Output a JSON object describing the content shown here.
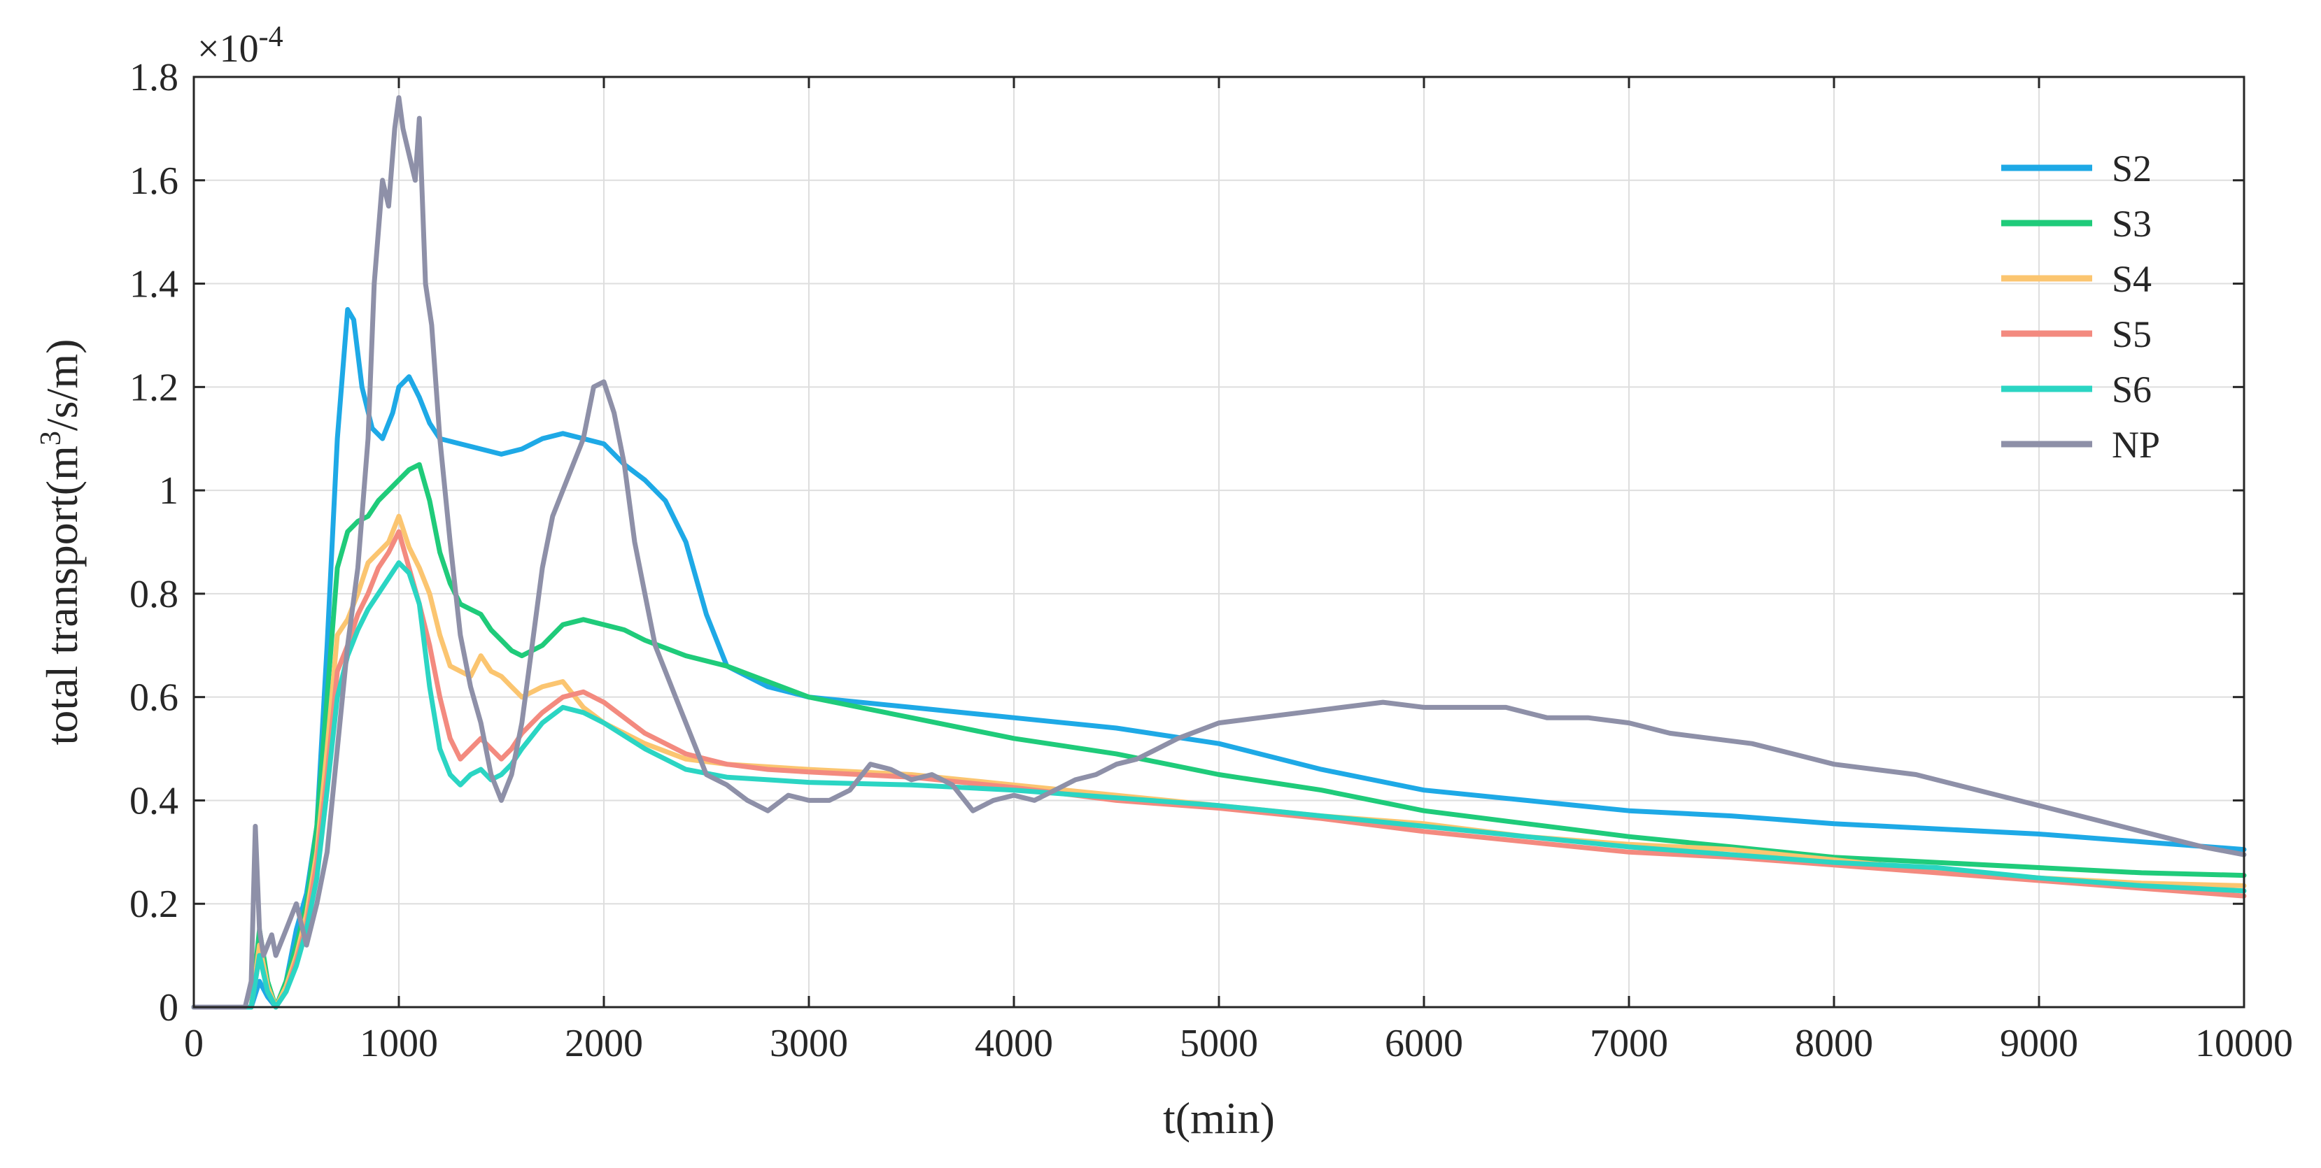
{
  "chart_data": {
    "type": "line",
    "xlabel": "t(min)",
    "ylabel_prefix": "total transport(m",
    "ylabel_sup": "3",
    "ylabel_suffix": "/s/m)",
    "exponent_base": "×10",
    "exponent_power": "-4",
    "xlim": [
      0,
      10000
    ],
    "ylim": [
      0,
      1.8
    ],
    "xticks": [
      0,
      1000,
      2000,
      3000,
      4000,
      5000,
      6000,
      7000,
      8000,
      9000,
      10000
    ],
    "xtick_labels": [
      "0",
      "1000",
      "2000",
      "3000",
      "4000",
      "5000",
      "6000",
      "7000",
      "8000",
      "9000",
      "10000"
    ],
    "yticks": [
      0,
      0.2,
      0.4,
      0.6,
      0.8,
      1,
      1.2,
      1.4,
      1.6,
      1.8
    ],
    "ytick_labels": [
      "0",
      "0.2",
      "0.4",
      "0.6",
      "0.8",
      "1",
      "1.2",
      "1.4",
      "1.6",
      "1.8"
    ],
    "grid": true,
    "legend_position": "top-right",
    "series": [
      {
        "name": "S2",
        "color": "#1EA9E6",
        "x": [
          0,
          100,
          200,
          280,
          320,
          360,
          400,
          450,
          500,
          550,
          600,
          650,
          700,
          750,
          780,
          820,
          870,
          920,
          970,
          1000,
          1050,
          1100,
          1150,
          1200,
          1300,
          1400,
          1500,
          1600,
          1700,
          1800,
          1900,
          2000,
          2100,
          2200,
          2300,
          2400,
          2500,
          2600,
          2800,
          3000,
          3500,
          4000,
          4500,
          5000,
          5500,
          6000,
          6500,
          7000,
          7500,
          8000,
          8500,
          9000,
          9500,
          10000
        ],
        "values": [
          0,
          0,
          0,
          0,
          0.05,
          0.02,
          0,
          0.05,
          0.15,
          0.22,
          0.35,
          0.7,
          1.1,
          1.35,
          1.33,
          1.2,
          1.12,
          1.1,
          1.15,
          1.2,
          1.22,
          1.18,
          1.13,
          1.1,
          1.09,
          1.08,
          1.07,
          1.08,
          1.1,
          1.11,
          1.1,
          1.09,
          1.05,
          1.02,
          0.98,
          0.9,
          0.76,
          0.66,
          0.62,
          0.6,
          0.58,
          0.56,
          0.54,
          0.51,
          0.46,
          0.42,
          0.4,
          0.38,
          0.37,
          0.355,
          0.345,
          0.335,
          0.32,
          0.305
        ]
      },
      {
        "name": "S3",
        "color": "#1FCB7A",
        "x": [
          0,
          100,
          200,
          280,
          320,
          360,
          400,
          450,
          500,
          550,
          600,
          650,
          700,
          750,
          800,
          850,
          900,
          950,
          1000,
          1050,
          1100,
          1150,
          1200,
          1250,
          1300,
          1350,
          1400,
          1450,
          1500,
          1550,
          1600,
          1700,
          1800,
          1900,
          2000,
          2100,
          2200,
          2400,
          2600,
          2800,
          3000,
          3500,
          4000,
          4500,
          5000,
          5500,
          6000,
          6500,
          7000,
          7500,
          8000,
          8500,
          9000,
          9500,
          10000
        ],
        "values": [
          0,
          0,
          0,
          0,
          0.15,
          0.05,
          0,
          0.05,
          0.12,
          0.2,
          0.35,
          0.6,
          0.85,
          0.92,
          0.94,
          0.95,
          0.98,
          1.0,
          1.02,
          1.04,
          1.05,
          0.98,
          0.88,
          0.82,
          0.78,
          0.77,
          0.76,
          0.73,
          0.71,
          0.69,
          0.68,
          0.7,
          0.74,
          0.75,
          0.74,
          0.73,
          0.71,
          0.68,
          0.66,
          0.63,
          0.6,
          0.56,
          0.52,
          0.49,
          0.45,
          0.42,
          0.38,
          0.355,
          0.33,
          0.31,
          0.29,
          0.28,
          0.27,
          0.26,
          0.255
        ]
      },
      {
        "name": "S4",
        "color": "#FBC570",
        "x": [
          0,
          100,
          200,
          280,
          320,
          360,
          400,
          450,
          500,
          550,
          600,
          650,
          700,
          750,
          800,
          850,
          900,
          950,
          1000,
          1050,
          1100,
          1150,
          1200,
          1250,
          1300,
          1350,
          1400,
          1450,
          1500,
          1550,
          1600,
          1700,
          1800,
          1900,
          2000,
          2200,
          2400,
          2600,
          2800,
          3000,
          3500,
          4000,
          4500,
          5000,
          5500,
          6000,
          6500,
          7000,
          7500,
          8000,
          8500,
          9000,
          9500,
          10000
        ],
        "values": [
          0,
          0,
          0,
          0,
          0.12,
          0.04,
          0,
          0.04,
          0.1,
          0.18,
          0.3,
          0.5,
          0.72,
          0.75,
          0.8,
          0.86,
          0.88,
          0.9,
          0.95,
          0.89,
          0.85,
          0.8,
          0.72,
          0.66,
          0.65,
          0.64,
          0.68,
          0.65,
          0.64,
          0.62,
          0.6,
          0.62,
          0.63,
          0.58,
          0.55,
          0.51,
          0.48,
          0.47,
          0.465,
          0.46,
          0.45,
          0.43,
          0.41,
          0.39,
          0.37,
          0.355,
          0.33,
          0.315,
          0.305,
          0.285,
          0.265,
          0.25,
          0.24,
          0.235
        ]
      },
      {
        "name": "S5",
        "color": "#F38A7F",
        "x": [
          0,
          100,
          200,
          280,
          320,
          360,
          400,
          450,
          500,
          550,
          600,
          650,
          700,
          750,
          800,
          850,
          900,
          950,
          1000,
          1050,
          1100,
          1150,
          1200,
          1250,
          1300,
          1350,
          1400,
          1450,
          1500,
          1550,
          1600,
          1700,
          1800,
          1900,
          2000,
          2200,
          2400,
          2600,
          2800,
          3000,
          3500,
          4000,
          4500,
          5000,
          5500,
          6000,
          6500,
          7000,
          7500,
          8000,
          8500,
          9000,
          9500,
          10000
        ],
        "values": [
          0,
          0,
          0,
          0,
          0.1,
          0.03,
          0,
          0.03,
          0.09,
          0.16,
          0.28,
          0.45,
          0.65,
          0.7,
          0.76,
          0.8,
          0.85,
          0.88,
          0.92,
          0.85,
          0.78,
          0.7,
          0.6,
          0.52,
          0.48,
          0.5,
          0.52,
          0.5,
          0.48,
          0.5,
          0.53,
          0.57,
          0.6,
          0.61,
          0.59,
          0.53,
          0.49,
          0.47,
          0.46,
          0.455,
          0.445,
          0.425,
          0.4,
          0.385,
          0.365,
          0.34,
          0.32,
          0.3,
          0.29,
          0.275,
          0.26,
          0.245,
          0.23,
          0.215
        ]
      },
      {
        "name": "S6",
        "color": "#2BD5C3",
        "x": [
          0,
          100,
          200,
          280,
          320,
          360,
          400,
          450,
          500,
          550,
          600,
          650,
          700,
          750,
          800,
          850,
          900,
          950,
          1000,
          1050,
          1100,
          1150,
          1200,
          1250,
          1300,
          1350,
          1400,
          1450,
          1500,
          1550,
          1600,
          1700,
          1800,
          1900,
          2000,
          2200,
          2400,
          2600,
          2800,
          3000,
          3500,
          4000,
          4500,
          5000,
          5500,
          6000,
          6500,
          7000,
          7500,
          8000,
          8500,
          9000,
          9500,
          10000
        ],
        "values": [
          0,
          0,
          0,
          0,
          0.1,
          0.03,
          0,
          0.03,
          0.08,
          0.15,
          0.25,
          0.42,
          0.6,
          0.68,
          0.73,
          0.77,
          0.8,
          0.83,
          0.86,
          0.84,
          0.78,
          0.62,
          0.5,
          0.45,
          0.43,
          0.45,
          0.46,
          0.44,
          0.45,
          0.47,
          0.5,
          0.55,
          0.58,
          0.57,
          0.55,
          0.5,
          0.46,
          0.445,
          0.44,
          0.435,
          0.43,
          0.42,
          0.405,
          0.39,
          0.37,
          0.35,
          0.33,
          0.31,
          0.295,
          0.28,
          0.27,
          0.25,
          0.235,
          0.225
        ]
      },
      {
        "name": "NP",
        "color": "#8E90A8",
        "x": [
          0,
          100,
          200,
          250,
          280,
          300,
          320,
          340,
          360,
          380,
          400,
          420,
          450,
          480,
          500,
          550,
          600,
          650,
          700,
          750,
          800,
          850,
          880,
          900,
          920,
          950,
          980,
          1000,
          1020,
          1050,
          1080,
          1100,
          1130,
          1160,
          1200,
          1250,
          1300,
          1350,
          1400,
          1450,
          1500,
          1550,
          1600,
          1650,
          1700,
          1750,
          1800,
          1850,
          1900,
          1950,
          2000,
          2050,
          2100,
          2150,
          2200,
          2250,
          2300,
          2350,
          2400,
          2450,
          2500,
          2600,
          2700,
          2800,
          2900,
          3000,
          3100,
          3200,
          3300,
          3400,
          3500,
          3600,
          3700,
          3800,
          3900,
          4000,
          4100,
          4200,
          4300,
          4400,
          4500,
          4600,
          4700,
          4800,
          5000,
          5200,
          5400,
          5600,
          5800,
          6000,
          6200,
          6400,
          6600,
          6800,
          7000,
          7200,
          7400,
          7600,
          7800,
          8000,
          8200,
          8400,
          8600,
          8800,
          9000,
          9200,
          9400,
          9600,
          9800,
          10000
        ],
        "values": [
          0,
          0,
          0,
          0,
          0.05,
          0.35,
          0.15,
          0.1,
          0.12,
          0.14,
          0.1,
          0.12,
          0.15,
          0.18,
          0.2,
          0.12,
          0.2,
          0.3,
          0.5,
          0.7,
          0.85,
          1.1,
          1.4,
          1.5,
          1.6,
          1.55,
          1.7,
          1.76,
          1.7,
          1.65,
          1.6,
          1.72,
          1.4,
          1.32,
          1.1,
          0.9,
          0.72,
          0.62,
          0.55,
          0.45,
          0.4,
          0.45,
          0.55,
          0.7,
          0.85,
          0.95,
          1.0,
          1.05,
          1.1,
          1.2,
          1.21,
          1.15,
          1.05,
          0.9,
          0.8,
          0.7,
          0.65,
          0.6,
          0.55,
          0.5,
          0.45,
          0.43,
          0.4,
          0.38,
          0.41,
          0.4,
          0.4,
          0.42,
          0.47,
          0.46,
          0.44,
          0.45,
          0.43,
          0.38,
          0.4,
          0.41,
          0.4,
          0.42,
          0.44,
          0.45,
          0.47,
          0.48,
          0.5,
          0.52,
          0.55,
          0.56,
          0.57,
          0.58,
          0.59,
          0.58,
          0.58,
          0.58,
          0.56,
          0.56,
          0.55,
          0.53,
          0.52,
          0.51,
          0.49,
          0.47,
          0.46,
          0.45,
          0.43,
          0.41,
          0.39,
          0.37,
          0.35,
          0.33,
          0.31,
          0.295
        ]
      }
    ]
  }
}
